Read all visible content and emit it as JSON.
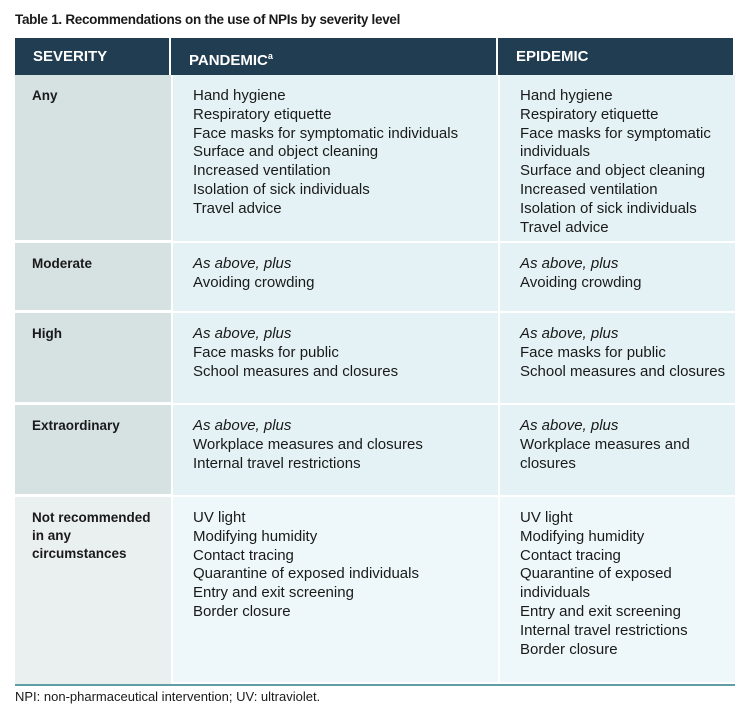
{
  "title": "Table 1. Recommendations on the use of NPIs by severity level",
  "header": {
    "severity": "SEVERITY",
    "pandemic": "PANDEMIC",
    "pandemic_note": "a",
    "epidemic": "EPIDEMIC"
  },
  "rows": [
    {
      "severity": "Any",
      "pandemic": {
        "items": [
          "Hand hygiene",
          "Respiratory etiquette",
          "Face masks for symptomatic individuals",
          "Surface and object cleaning",
          "Increased ventilation",
          "Isolation of sick individuals",
          "Travel advice"
        ]
      },
      "epidemic": {
        "items": [
          "Hand hygiene",
          "Respiratory etiquette",
          "Face masks for symptomatic individuals",
          "Surface and object cleaning",
          "Increased ventilation",
          "Isolation of sick individuals",
          "Travel advice"
        ]
      }
    },
    {
      "severity": "Moderate",
      "pandemic": {
        "lead": "As above, plus",
        "items": [
          "Avoiding crowding"
        ]
      },
      "epidemic": {
        "lead": "As above, plus",
        "items": [
          "Avoiding crowding"
        ]
      }
    },
    {
      "severity": "High",
      "pandemic": {
        "lead": "As above, plus",
        "items": [
          "Face masks for public",
          "School measures and closures"
        ]
      },
      "epidemic": {
        "lead": "As above, plus",
        "items": [
          "Face masks for public",
          "School measures and closures"
        ]
      }
    },
    {
      "severity": "Extraordinary",
      "pandemic": {
        "lead": "As above, plus",
        "items": [
          "Workplace measures and closures",
          "Internal travel restrictions"
        ]
      },
      "epidemic": {
        "lead": "As above, plus",
        "items": [
          "Workplace measures and closures"
        ]
      }
    },
    {
      "severity": "Not recommended in any circumstances",
      "pandemic": {
        "items": [
          "UV light",
          "Modifying humidity",
          "Contact tracing",
          "Quarantine of exposed individuals",
          "Entry and exit screening",
          "Border closure"
        ]
      },
      "epidemic": {
        "items": [
          "UV light",
          "Modifying humidity",
          "Contact tracing",
          "Quarantine of exposed individuals",
          "Entry and exit screening",
          "Internal travel restrictions",
          "Border closure"
        ]
      }
    }
  ],
  "footnote": "NPI: non-pharmaceutical intervention; UV: ultraviolet."
}
